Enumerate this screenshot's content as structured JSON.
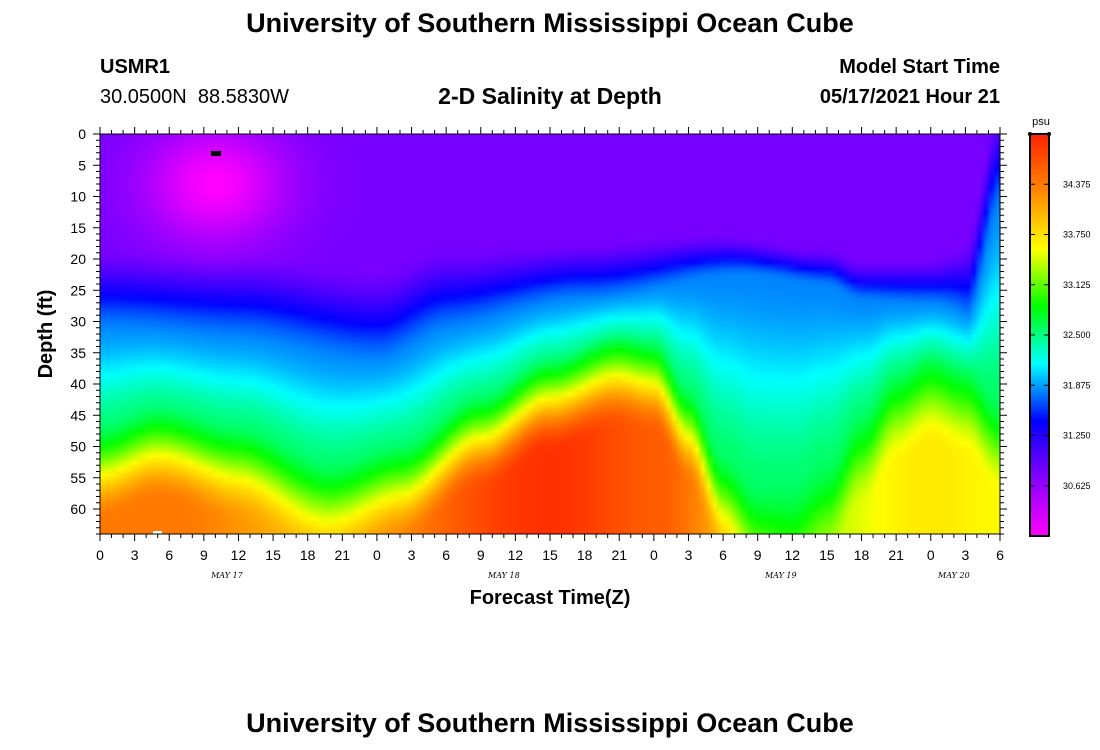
{
  "header": {
    "title": "University of Southern Mississippi Ocean Cube",
    "station_id": "USMR1",
    "coordinates": "30.0500N  88.5830W",
    "product": "2-D Salinity at Depth",
    "start_label": "Model Start Time",
    "start_value": "05/17/2021 Hour 21"
  },
  "footer": {
    "title": "University of Southern Mississippi Ocean Cube"
  },
  "chart_data": {
    "type": "heatmap",
    "title": "2-D Salinity at Depth",
    "xlabel": "Forecast Time(Z)",
    "ylabel": "Depth (ft)",
    "x_range_hours": [
      0,
      78
    ],
    "y_range": [
      0,
      64
    ],
    "x_tick_hours": [
      0,
      3,
      6,
      9,
      12,
      15,
      18,
      21,
      24,
      27,
      30,
      33,
      36,
      39,
      42,
      45,
      48,
      51,
      54,
      57,
      60,
      63,
      66,
      69,
      72,
      75,
      78
    ],
    "x_tick_labels": [
      "0",
      "3",
      "6",
      "9",
      "12",
      "15",
      "18",
      "21",
      "0",
      "3",
      "6",
      "9",
      "12",
      "15",
      "18",
      "21",
      "0",
      "3",
      "6",
      "9",
      "12",
      "15",
      "18",
      "21",
      "0",
      "3",
      "6"
    ],
    "y_ticks": [
      0,
      5,
      10,
      15,
      20,
      25,
      30,
      35,
      40,
      45,
      50,
      55,
      60
    ],
    "day_labels": [
      {
        "hour": 11,
        "label": "MAY 17"
      },
      {
        "hour": 35,
        "label": "MAY 18"
      },
      {
        "hour": 59,
        "label": "MAY 19"
      },
      {
        "hour": 74,
        "label": "MAY 20"
      }
    ],
    "colorbar": {
      "unit": "psu",
      "min": 30.0,
      "max": 35.0,
      "tick_values": [
        30.625,
        31.25,
        31.875,
        32.5,
        33.125,
        33.75,
        34.375
      ],
      "tick_labels": [
        "30.625",
        "31.250",
        "31.875",
        "32.500",
        "33.125",
        "33.750",
        "34.375"
      ],
      "palette": [
        "#ff00ff",
        "#8800ff",
        "#0000ff",
        "#00ffff",
        "#00ff00",
        "#ffff00",
        "#ff8800",
        "#ff2200"
      ]
    },
    "surface_value": 30.8,
    "halocline_depth": [
      {
        "hour": 0,
        "depth": 22
      },
      {
        "hour": 12,
        "depth": 23
      },
      {
        "hour": 24,
        "depth": 26
      },
      {
        "hour": 30,
        "depth": 22
      },
      {
        "hour": 42,
        "depth": 20
      },
      {
        "hour": 54,
        "depth": 18
      },
      {
        "hour": 63,
        "depth": 20
      },
      {
        "hour": 66,
        "depth": 22
      },
      {
        "hour": 72,
        "depth": 22
      },
      {
        "hour": 75,
        "depth": 21
      },
      {
        "hour": 78,
        "depth": 0
      }
    ],
    "upper_gradient_thickness": [
      {
        "hour": 0,
        "thickness": 14
      },
      {
        "hour": 24,
        "thickness": 16
      },
      {
        "hour": 42,
        "thickness": 10
      },
      {
        "hour": 60,
        "thickness": 6
      },
      {
        "hour": 72,
        "thickness": 8
      },
      {
        "hour": 78,
        "thickness": 18
      }
    ],
    "deep_layer_top": [
      {
        "hour": 0,
        "depth": 52
      },
      {
        "hour": 5,
        "depth": 49
      },
      {
        "hour": 12,
        "depth": 52
      },
      {
        "hour": 20,
        "depth": 58
      },
      {
        "hour": 26,
        "depth": 55
      },
      {
        "hour": 33,
        "depth": 47
      },
      {
        "hour": 39,
        "depth": 41
      },
      {
        "hour": 45,
        "depth": 37
      },
      {
        "hour": 48,
        "depth": 38
      },
      {
        "hour": 51,
        "depth": 46
      },
      {
        "hour": 54,
        "depth": 57
      },
      {
        "hour": 57,
        "depth": 62
      },
      {
        "hour": 60,
        "depth": 62
      },
      {
        "hour": 63,
        "depth": 58
      },
      {
        "hour": 66,
        "depth": 50
      },
      {
        "hour": 69,
        "depth": 43
      },
      {
        "hour": 72,
        "depth": 40
      },
      {
        "hour": 75,
        "depth": 42
      },
      {
        "hour": 78,
        "depth": 48
      }
    ],
    "deep_layer_max": [
      {
        "hour": 0,
        "value": 34.4
      },
      {
        "hour": 6,
        "value": 34.4
      },
      {
        "hour": 18,
        "value": 34.0
      },
      {
        "hour": 39,
        "value": 34.9
      },
      {
        "hour": 48,
        "value": 34.6
      },
      {
        "hour": 60,
        "value": 33.3
      },
      {
        "hour": 72,
        "value": 33.7
      },
      {
        "hour": 78,
        "value": 33.6
      }
    ],
    "surface_max_spot": {
      "hour": 10,
      "depth": 8,
      "value": 30.0
    }
  }
}
